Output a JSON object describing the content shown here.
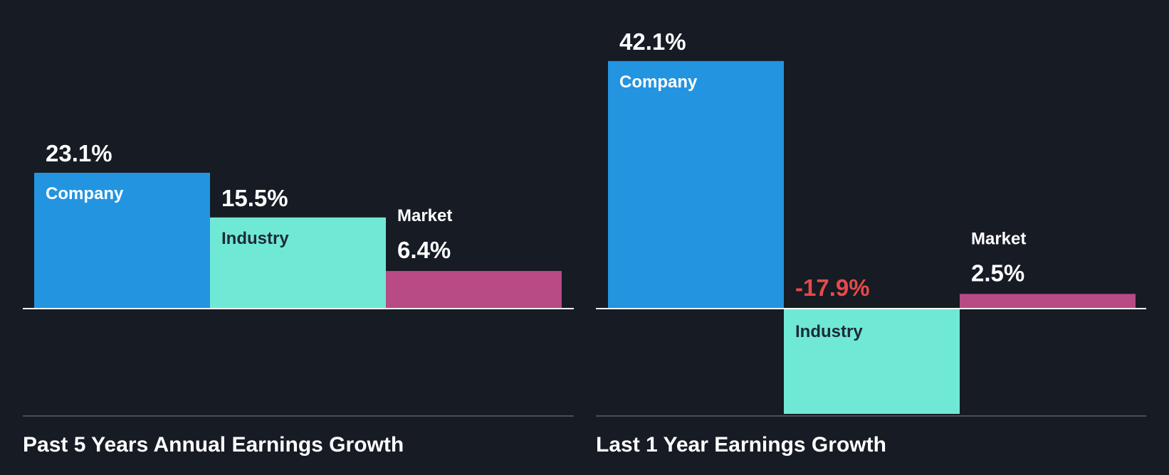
{
  "colors": {
    "background": "#161b24",
    "company": "#2394e0",
    "industry": "#70e8d6",
    "market": "#b84a85",
    "text": "#ffffff",
    "negative_text": "#e64a4a",
    "dark_label": "#1d2a36",
    "footer_line": "#4a4f58"
  },
  "chart_data": [
    {
      "type": "bar",
      "title": "Past 5 Years Annual Earnings Growth",
      "categories": [
        "Company",
        "Industry",
        "Market"
      ],
      "values": [
        23.1,
        15.5,
        6.4
      ],
      "value_labels": [
        "23.1%",
        "15.5%",
        "6.4%"
      ],
      "unit": "%",
      "ylim": [
        -18.4,
        23.1
      ]
    },
    {
      "type": "bar",
      "title": "Last 1 Year Earnings Growth",
      "categories": [
        "Company",
        "Industry",
        "Market"
      ],
      "values": [
        42.1,
        -17.9,
        2.5
      ],
      "value_labels": [
        "42.1%",
        "-17.9%",
        "2.5%"
      ],
      "unit": "%",
      "ylim": [
        -18.4,
        42.1
      ]
    }
  ]
}
